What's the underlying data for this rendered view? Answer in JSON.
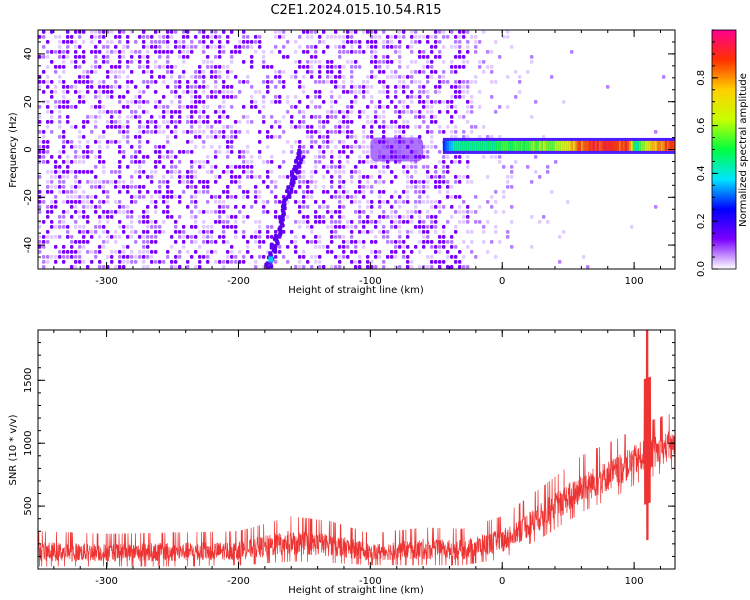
{
  "title": "C2E1.2024.015.10.54.R15",
  "chart_data": [
    {
      "type": "heatmap",
      "name": "spectrogram",
      "xlabel": "Height of straight line (km)",
      "ylabel": "Frequency (Hz)",
      "xlim": [
        -352,
        131
      ],
      "ylim": [
        -50,
        50
      ],
      "x_ticks": [
        -300,
        -200,
        -100,
        0,
        100
      ],
      "x_tick_labels": [
        "-300",
        "-200",
        "-100",
        "0",
        "100"
      ],
      "y_ticks": [
        -40,
        -20,
        0,
        20,
        40
      ],
      "y_tick_labels": [
        "-40",
        "-20",
        "0",
        "20",
        "40"
      ],
      "colorbar": {
        "label": "Normalized spectral amplitude",
        "range": [
          0,
          1
        ],
        "ticks": [
          0.0,
          0.2,
          0.4,
          0.6,
          0.8
        ],
        "tick_labels": [
          "0.0",
          "0.2",
          "0.4",
          "0.6",
          "0.8"
        ],
        "colors": [
          "#ffffff",
          "#7a00ff",
          "#0000ff",
          "#00e5ff",
          "#00ff40",
          "#c8ff00",
          "#ffd000",
          "#ff3000",
          "#ff0090"
        ]
      },
      "noise_extent_km": [
        -352,
        -25
      ],
      "noise_amplitude": 0.12,
      "carrier_band": {
        "start_km": -45,
        "freq_hz": 1.5,
        "width_hz": 2.5,
        "amplitude_profile": [
          {
            "x": -45,
            "value": 0.3
          },
          {
            "x": -35,
            "value": 0.45
          },
          {
            "x": 0,
            "value": 0.5
          },
          {
            "x": 40,
            "value": 0.6
          },
          {
            "x": 65,
            "value": 0.9
          },
          {
            "x": 95,
            "value": 0.85
          },
          {
            "x": 100,
            "value": 0.4
          },
          {
            "x": 110,
            "value": 0.7
          },
          {
            "x": 131,
            "value": 0.9
          }
        ]
      },
      "drift_trace": [
        {
          "x": -178,
          "freq_hz": -50
        },
        {
          "x": -170,
          "freq_hz": -35
        },
        {
          "x": -160,
          "freq_hz": -15
        },
        {
          "x": -152,
          "freq_hz": 0
        }
      ]
    },
    {
      "type": "line",
      "name": "snr",
      "xlabel": "Height of straight line (km)",
      "ylabel": "SNR (10 * v/v)",
      "xlim": [
        -352,
        131
      ],
      "ylim": [
        0,
        1900
      ],
      "x_ticks": [
        -300,
        -200,
        -100,
        0,
        100
      ],
      "x_tick_labels": [
        "-300",
        "-200",
        "-100",
        "0",
        "100"
      ],
      "y_ticks": [
        500,
        1000,
        1500
      ],
      "y_tick_labels": [
        "500",
        "1000",
        "1500"
      ],
      "color": "#ee3333",
      "envelope": [
        {
          "x": -352,
          "low": 20,
          "high": 300
        },
        {
          "x": -300,
          "low": 20,
          "high": 280
        },
        {
          "x": -250,
          "low": 20,
          "high": 290
        },
        {
          "x": -200,
          "low": 30,
          "high": 300
        },
        {
          "x": -160,
          "low": 60,
          "high": 420
        },
        {
          "x": -130,
          "low": 50,
          "high": 380
        },
        {
          "x": -100,
          "low": 30,
          "high": 280
        },
        {
          "x": -60,
          "low": 30,
          "high": 330
        },
        {
          "x": -30,
          "low": 30,
          "high": 320
        },
        {
          "x": 0,
          "low": 80,
          "high": 420
        },
        {
          "x": 30,
          "low": 250,
          "high": 650
        },
        {
          "x": 60,
          "low": 450,
          "high": 900
        },
        {
          "x": 90,
          "low": 600,
          "high": 1050
        },
        {
          "x": 105,
          "low": 700,
          "high": 1150
        },
        {
          "x": 131,
          "low": 800,
          "high": 1250
        }
      ],
      "spike": {
        "x": 110,
        "peak": 1900,
        "dip": 230
      }
    }
  ]
}
